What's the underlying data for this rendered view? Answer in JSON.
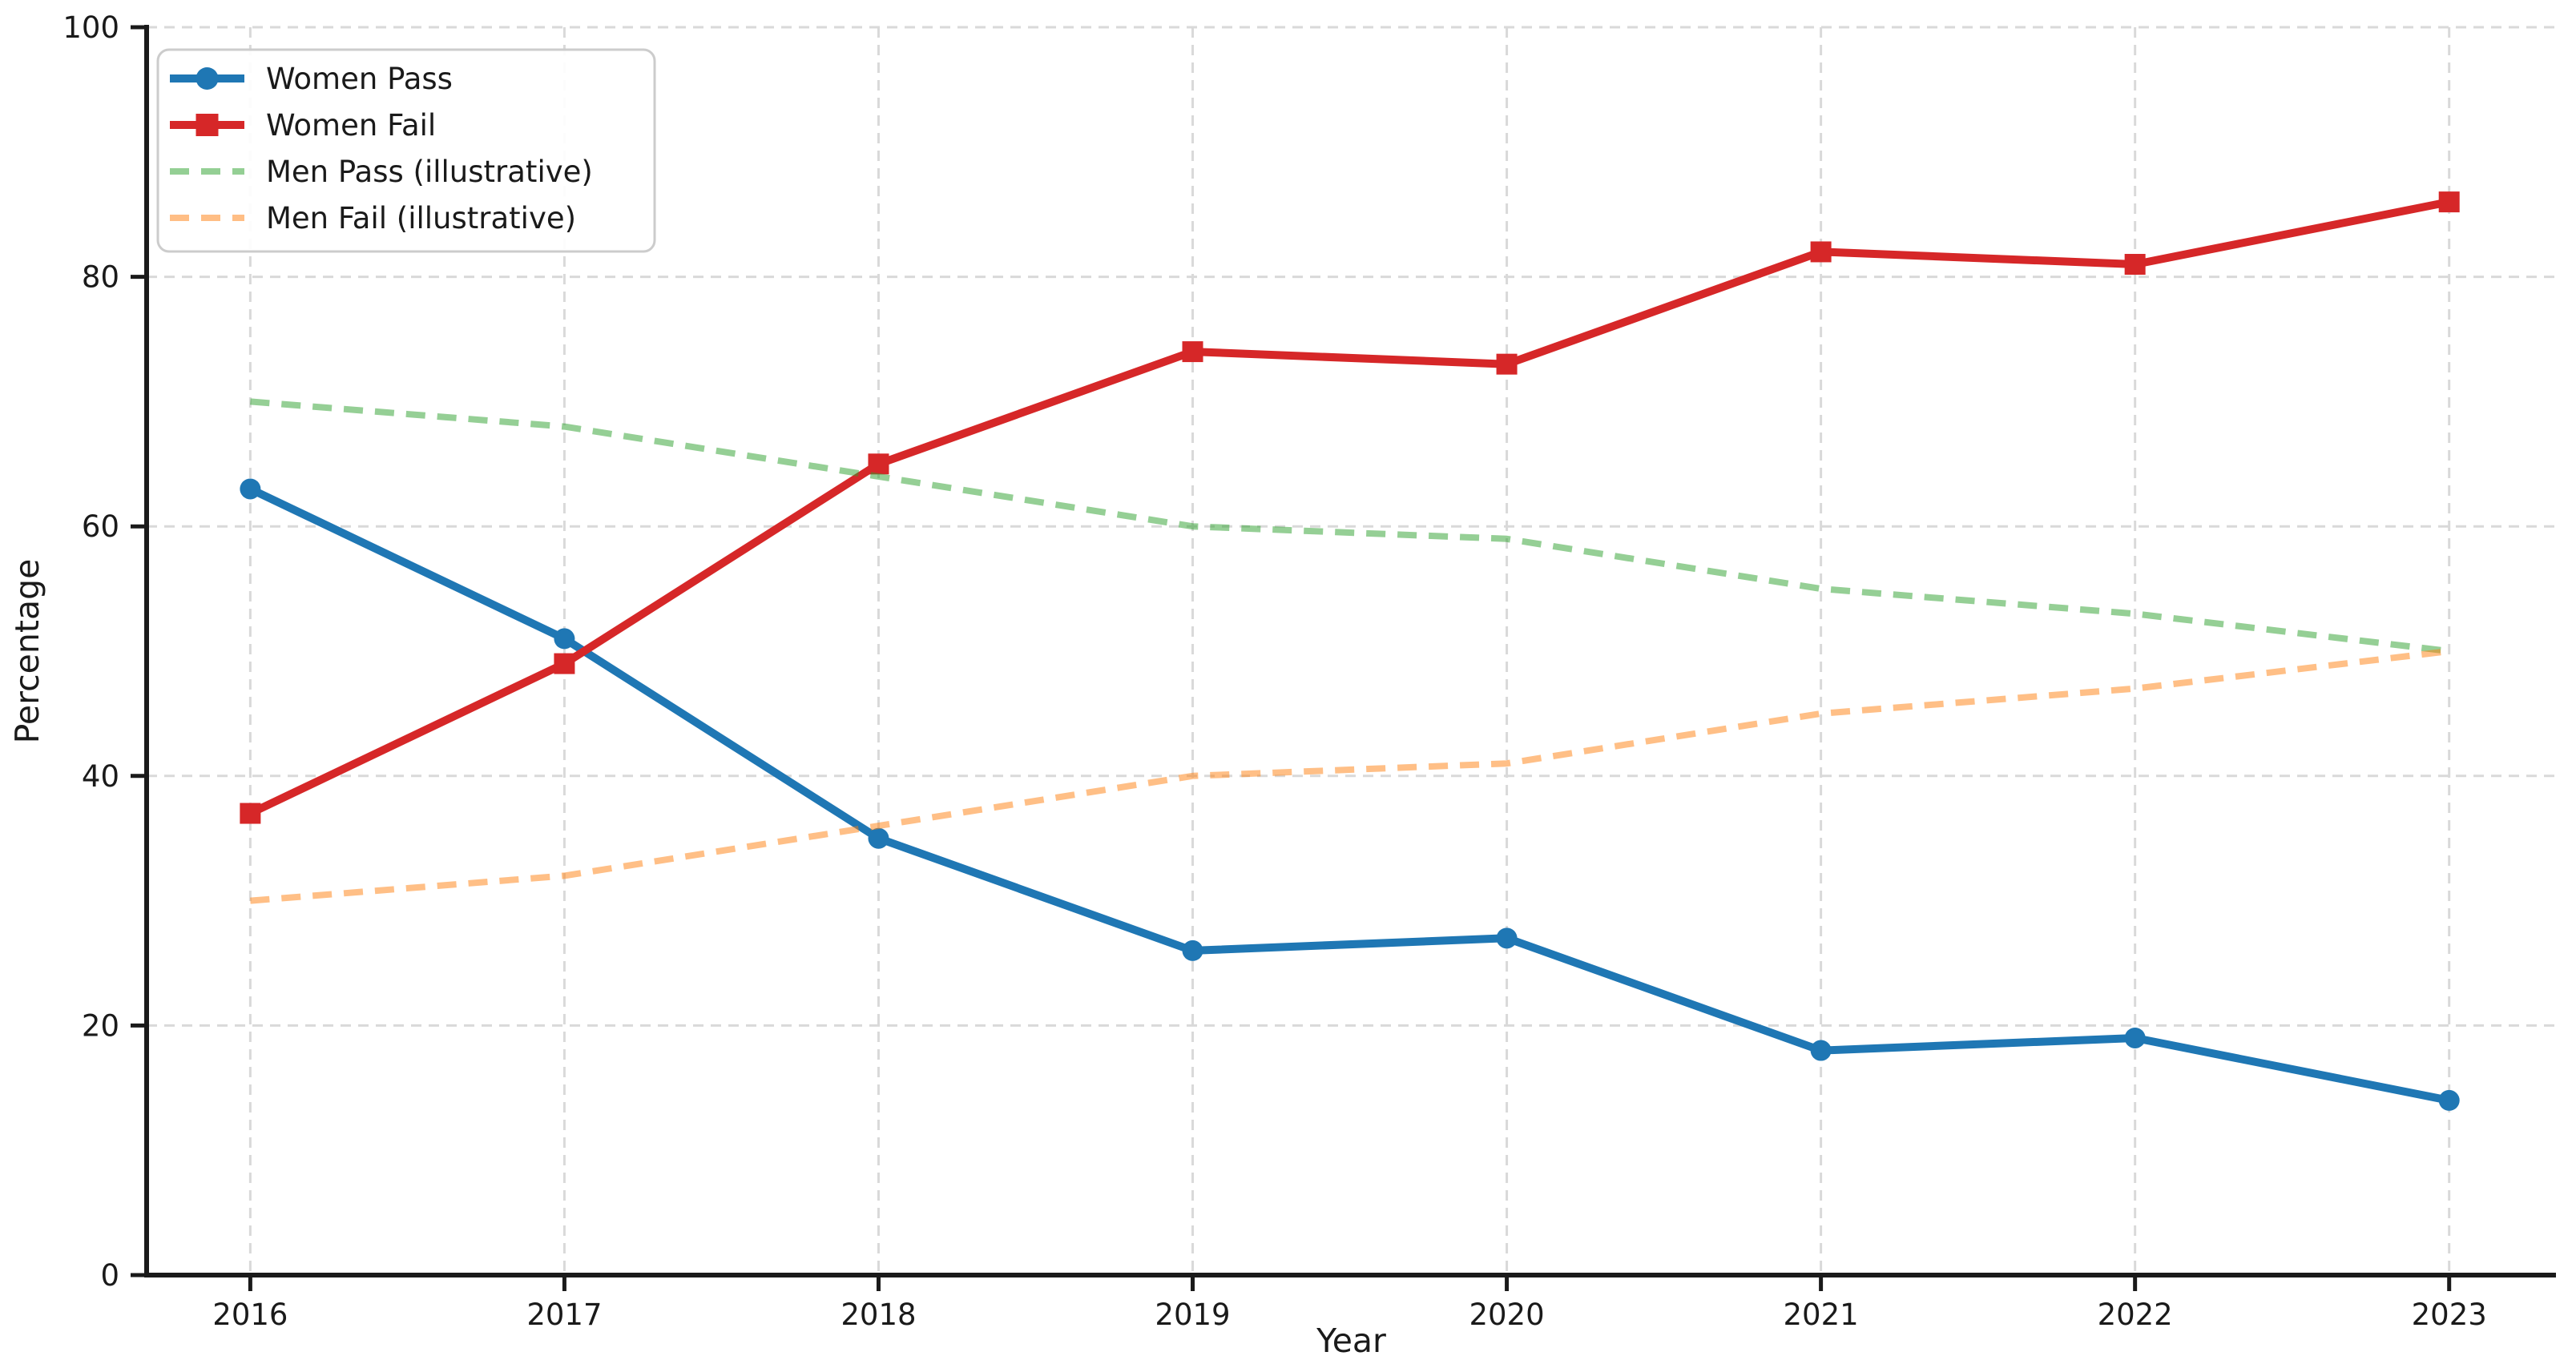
{
  "chart_data": {
    "type": "line",
    "title": "",
    "xlabel": "Year",
    "ylabel": "Percentage",
    "x": [
      2016,
      2017,
      2018,
      2019,
      2020,
      2021,
      2022,
      2023
    ],
    "x_tick_labels": [
      "2016",
      "2017",
      "2018",
      "2019",
      "2020",
      "2021",
      "2022",
      "2023"
    ],
    "y_ticks": [
      0,
      20,
      40,
      60,
      80,
      100
    ],
    "y_tick_labels": [
      "0",
      "20",
      "40",
      "60",
      "80",
      "100"
    ],
    "xlim": [
      2015.67,
      2023.34
    ],
    "ylim": [
      0,
      100
    ],
    "grid": true,
    "grid_style": "dashed",
    "legend_position": "upper-left",
    "series": [
      {
        "name": "Women Pass",
        "color": "#1f77b4",
        "opacity": 1,
        "style": "solid",
        "marker": "circle",
        "values": [
          63,
          51,
          35,
          26,
          27,
          18,
          19,
          14
        ]
      },
      {
        "name": "Women Fail",
        "color": "#d62728",
        "opacity": 1,
        "style": "solid",
        "marker": "square",
        "values": [
          37,
          49,
          65,
          74,
          73,
          82,
          81,
          86
        ]
      },
      {
        "name": "Men Pass (illustrative)",
        "color": "#2ca02c",
        "opacity": 0.5,
        "style": "dashed",
        "marker": "none",
        "values": [
          70,
          68,
          64,
          60,
          59,
          55,
          53,
          50
        ]
      },
      {
        "name": "Men Fail (illustrative)",
        "color": "#ff7f0e",
        "opacity": 0.5,
        "style": "dashed",
        "marker": "none",
        "values": [
          30,
          32,
          36,
          40,
          41,
          45,
          47,
          50
        ]
      }
    ],
    "colors": {
      "axis": "#1a1a1a",
      "text": "#1a1a1a",
      "grid": "#d9d9d9",
      "background": "#ffffff",
      "legend_border": "#cccccc",
      "legend_background": "#ffffff"
    }
  }
}
